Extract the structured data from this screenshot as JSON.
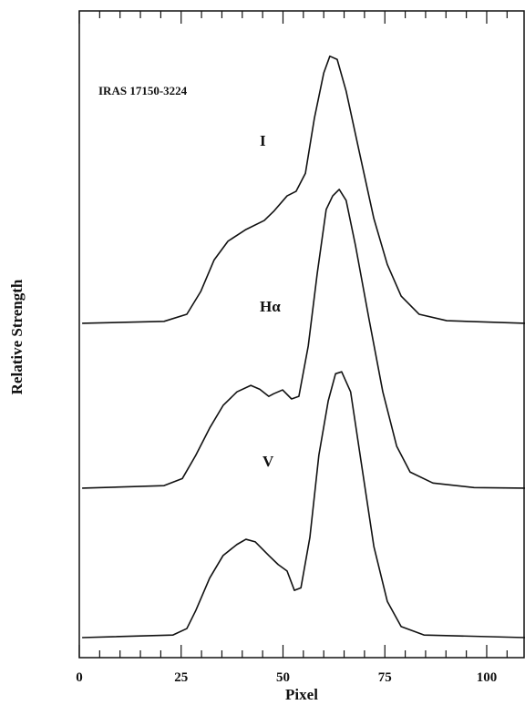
{
  "chart_data": {
    "type": "line",
    "annotation": "IRAS 17150-3224",
    "xlabel": "Pixel",
    "ylabel": "Relative Strength",
    "xlim": [
      0,
      109.4
    ],
    "ylim": [
      0,
      100
    ],
    "xticks": [
      0,
      25,
      50,
      75,
      100
    ],
    "xminorticks": [
      5,
      10,
      15,
      20,
      30,
      35,
      40,
      45,
      55,
      60,
      65,
      70,
      80,
      85,
      90,
      95,
      105
    ],
    "color": "#111111",
    "series": [
      {
        "name": "I",
        "x": [
          0.7,
          20.8,
          26.4,
          29.8,
          33.1,
          36.5,
          40.9,
          45.4,
          47.7,
          51,
          53.2,
          55.5,
          57.7,
          60,
          61.5,
          63.3,
          65.5,
          68.9,
          72.3,
          75.6,
          79,
          83.4,
          90.2,
          109.4
        ],
        "values": [
          51.7,
          52.0,
          53.1,
          56.6,
          61.5,
          64.4,
          66.2,
          67.6,
          69.0,
          71.4,
          72.1,
          74.9,
          83.4,
          90.4,
          93.0,
          92.5,
          87.6,
          77.7,
          67.9,
          60.8,
          55.9,
          53.1,
          52.1,
          51.7
        ]
      },
      {
        "name": "Hα",
        "x": [
          0.7,
          20.8,
          25.3,
          28.6,
          32,
          35.3,
          38.7,
          42.1,
          44.3,
          46.5,
          47.7,
          49.9,
          52.1,
          53.9,
          56.2,
          58.4,
          60.6,
          62.2,
          63.8,
          65.5,
          67.8,
          71.1,
          74.5,
          77.9,
          81.2,
          86.8,
          96.9,
          109.4
        ],
        "values": [
          26.2,
          26.6,
          27.7,
          31.3,
          35.5,
          39.0,
          41.1,
          42.1,
          41.5,
          40.4,
          40.8,
          41.4,
          40.0,
          40.4,
          48.2,
          59.4,
          69.3,
          71.4,
          72.4,
          70.7,
          63.7,
          52.4,
          41.1,
          32.7,
          28.7,
          27.0,
          26.3,
          26.2
        ]
      },
      {
        "name": "V",
        "x": [
          0.7,
          23,
          26.4,
          28.6,
          32,
          35.3,
          38.7,
          40.9,
          43.2,
          46.5,
          48.8,
          51,
          52.8,
          54.4,
          56.6,
          58.8,
          61.1,
          62.9,
          64.4,
          66.6,
          69.6,
          72.3,
          75.6,
          79,
          84.6,
          109.4
        ],
        "values": [
          3.1,
          3.5,
          4.5,
          7.3,
          12.3,
          15.8,
          17.5,
          18.3,
          17.9,
          15.8,
          14.4,
          13.4,
          10.4,
          10.8,
          18.6,
          31.3,
          39.7,
          43.9,
          44.2,
          41.1,
          28.5,
          17.2,
          8.7,
          4.8,
          3.5,
          3.1
        ]
      }
    ]
  }
}
